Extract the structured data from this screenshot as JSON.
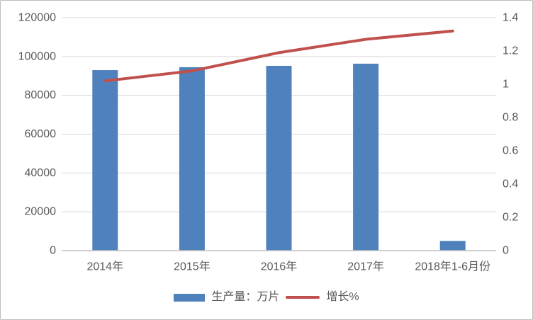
{
  "chart_data": {
    "type": "combo",
    "title": "",
    "categories": [
      "2014年",
      "2015年",
      "2016年",
      "2017年",
      "2018年1-6月份"
    ],
    "series": [
      {
        "name": "生产量：万片",
        "type": "bar",
        "axis": "left",
        "color": "#4f81bd",
        "values": [
          93000,
          94500,
          95200,
          96300,
          5000
        ]
      },
      {
        "name": "增长%",
        "type": "line",
        "axis": "right",
        "color": "#c0504d",
        "values": [
          1.02,
          1.08,
          1.19,
          1.27,
          1.32
        ]
      }
    ],
    "left_axis": {
      "min": 0,
      "max": 120000,
      "step": 20000,
      "ticks": [
        0,
        20000,
        40000,
        60000,
        80000,
        100000,
        120000
      ],
      "tick_labels": [
        "0",
        "20000",
        "40000",
        "60000",
        "80000",
        "100000",
        "120000"
      ]
    },
    "right_axis": {
      "min": 0,
      "max": 1.4,
      "step": 0.2,
      "ticks": [
        0,
        0.2,
        0.4,
        0.6,
        0.8,
        1,
        1.2,
        1.4
      ],
      "tick_labels": [
        "0",
        "0.2",
        "0.4",
        "0.6",
        "0.8",
        "1",
        "1.2",
        "1.4"
      ]
    },
    "grid": true,
    "legend_position": "bottom"
  },
  "colors": {
    "bar": "#4f81bd",
    "line": "#c0504d",
    "gridline": "#d9d9d9",
    "axis_line": "#bfbfbf",
    "label_text": "#595959",
    "frame_border": "#bdbdbd",
    "background": "#ffffff"
  }
}
